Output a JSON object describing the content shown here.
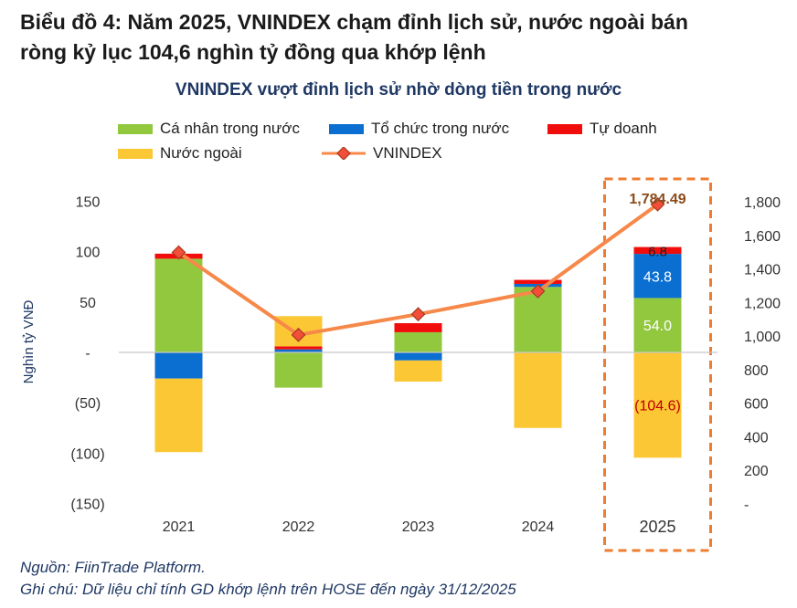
{
  "heading": {
    "line1": "Biểu đồ 4: Năm 2025, VNINDEX chạm đỉnh lịch sử, nước ngoài bán",
    "line2": "ròng kỷ lục 104,6 nghìn tỷ đồng qua khớp lệnh"
  },
  "footer": {
    "source": "Nguồn: FiinTrade Platform.",
    "note": "Ghi chú: Dữ liệu chỉ tính GD khớp lệnh trên HOSE đến ngày 31/12/2025"
  },
  "colors": {
    "ca_nhan": "#92c83e",
    "to_chuc": "#0b6fd1",
    "tu_doanh": "#f20d0d",
    "nuoc_ngoai": "#fcc734",
    "vnindex_line": "#f6894a",
    "vnindex_marker": "#f24e3a",
    "highlight_box": "#ee7d31",
    "highlight_label": "#8a4b1b",
    "negative_label": "#c00000"
  },
  "chart_data": {
    "type": "bar",
    "title": "VNINDEX vượt đỉnh lịch sử nhờ dòng tiền trong nước",
    "categories": [
      "2021",
      "2022",
      "2023",
      "2024",
      "2025"
    ],
    "ylabel": "Nghìn tỷ VNĐ",
    "ylim": [
      -150,
      150
    ],
    "y_ticks": [
      "150",
      "100",
      "50",
      "-",
      "(50)",
      "(100)",
      "(150)"
    ],
    "y2lim": [
      0,
      1800
    ],
    "y2_ticks": [
      "1,800",
      "1,600",
      "1,400",
      "1,200",
      "1,000",
      "800",
      "600",
      "400",
      "200",
      "-"
    ],
    "legend_position": "top",
    "series": [
      {
        "name": "Cá nhân trong nước",
        "color_key": "ca_nhan",
        "values": [
          93,
          -35,
          20,
          65,
          54.0
        ]
      },
      {
        "name": "Tổ chức trong nước",
        "color_key": "to_chuc",
        "values": [
          -26,
          3,
          -8,
          3,
          43.8
        ]
      },
      {
        "name": "Tự doanh",
        "color_key": "tu_doanh",
        "values": [
          5,
          3,
          9,
          4,
          6.8
        ]
      },
      {
        "name": "Nước ngoài",
        "color_key": "nuoc_ngoai",
        "values": [
          -73,
          30,
          -21,
          -75,
          -104.6
        ]
      }
    ],
    "line_series": {
      "name": "VNINDEX",
      "axis": "right",
      "values": [
        1498,
        1007,
        1130,
        1267,
        1784.49
      ]
    },
    "data_labels_2025": {
      "ca_nhan": "54.0",
      "to_chuc": "43.8",
      "tu_doanh": "6.8",
      "nuoc_ngoai": "(104.6)",
      "vnindex": "1,784.49"
    },
    "highlight_category": "2025"
  }
}
